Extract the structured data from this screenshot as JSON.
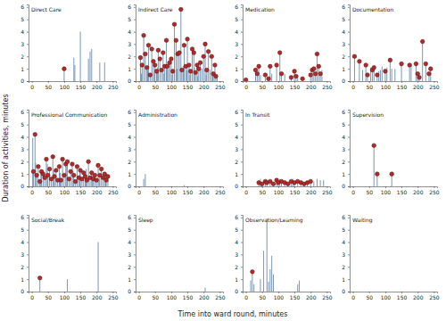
{
  "chart_data": [
    {
      "type": "spike",
      "title": "Direct Care",
      "xlim": [
        -10,
        260
      ],
      "xticks": [
        0,
        50,
        100,
        150,
        200,
        250
      ],
      "ylim": [
        0,
        6.2
      ],
      "yticks": [
        0,
        1,
        2,
        3,
        4,
        5,
        6
      ],
      "series": [
        {
          "type": "spike",
          "color": "#6a8bb0",
          "x": [
            130,
            133,
            150,
            175,
            180,
            185,
            210,
            225
          ],
          "values": [
            1.9,
            1.3,
            4.0,
            1.8,
            2.4,
            2.6,
            1.5,
            1.5
          ]
        },
        {
          "type": "spike",
          "marker": "circle",
          "color": "#b22a2a",
          "x": [
            100
          ],
          "values": [
            1.0
          ]
        }
      ]
    },
    {
      "type": "spike",
      "title": "Indirect Care",
      "xlim": [
        -10,
        260
      ],
      "xticks": [
        0,
        50,
        100,
        150,
        200,
        250
      ],
      "ylim": [
        0,
        6.2
      ],
      "yticks": [
        0,
        1,
        2,
        3,
        4,
        5,
        6
      ],
      "series": [
        {
          "type": "spike",
          "color": "#6a8bb0",
          "x": [
            8,
            27,
            48,
            58,
            78,
            92,
            103,
            118,
            137,
            148,
            158,
            172,
            182,
            195,
            208,
            220,
            228,
            242
          ],
          "values": [
            0.6,
            0.9,
            0.7,
            1.1,
            0.6,
            1.0,
            0.5,
            1.0,
            1.2,
            0.9,
            0.5,
            1.1,
            0.4,
            1.0,
            0.5,
            0.9,
            0.7,
            0.5
          ]
        },
        {
          "type": "spike",
          "marker": "circle",
          "color": "#b22a2a",
          "x": [
            5,
            10,
            15,
            20,
            25,
            30,
            35,
            40,
            45,
            50,
            55,
            60,
            65,
            70,
            75,
            80,
            85,
            88,
            95,
            100,
            105,
            110,
            115,
            120,
            125,
            130,
            133,
            140,
            145,
            150,
            155,
            160,
            165,
            170,
            175,
            180,
            185,
            190,
            200,
            205,
            210,
            215,
            225,
            230,
            235,
            238
          ],
          "values": [
            1.9,
            1.3,
            3.7,
            2.2,
            1.1,
            2.9,
            0.5,
            2.6,
            1.6,
            1.3,
            0.8,
            2.5,
            1.8,
            0.9,
            2.3,
            1.2,
            3.3,
            1.2,
            1.5,
            1.8,
            0.8,
            4.6,
            3.3,
            2.2,
            2.3,
            5.8,
            0.9,
            2.9,
            1.2,
            3.4,
            1.3,
            0.8,
            2.6,
            2.3,
            0.7,
            1.3,
            1.0,
            1.5,
            2.0,
            3.0,
            0.9,
            2.4,
            2.0,
            0.6,
            1.3,
            0.4
          ]
        }
      ]
    },
    {
      "type": "spike",
      "title": "Medication",
      "xlim": [
        -10,
        260
      ],
      "xticks": [
        0,
        50,
        100,
        150,
        200,
        250
      ],
      "ylim": [
        0,
        6.2
      ],
      "yticks": [
        0,
        1,
        2,
        3,
        4,
        5,
        6
      ],
      "series": [
        {
          "type": "spike",
          "color": "#6a8bb0",
          "x": [
            45,
            80,
            120,
            160,
            235
          ],
          "values": [
            0.5,
            0.6,
            0.6,
            0.5,
            0.9
          ]
        },
        {
          "type": "spike",
          "marker": "circle",
          "color": "#b22a2a",
          "x": [
            0,
            30,
            35,
            40,
            60,
            70,
            75,
            95,
            105,
            110,
            140,
            150,
            155,
            175,
            200,
            205,
            210,
            215,
            220,
            225,
            230
          ],
          "values": [
            0.1,
            0.9,
            0.6,
            1.2,
            0.5,
            0.2,
            1.2,
            1.3,
            2.3,
            0.6,
            0.3,
            0.8,
            0.4,
            0.2,
            0.5,
            0.9,
            1.0,
            0.6,
            2.2,
            1.2,
            0.6
          ]
        }
      ]
    },
    {
      "type": "spike",
      "title": "Documentation",
      "xlim": [
        -10,
        260
      ],
      "xticks": [
        0,
        50,
        100,
        150,
        200,
        250
      ],
      "ylim": [
        0,
        6.2
      ],
      "yticks": [
        0,
        1,
        2,
        3,
        4,
        5,
        6
      ],
      "series": [
        {
          "type": "spike",
          "color": "#6a8bb0",
          "x": [
            30,
            55,
            80,
            85,
            90,
            105,
            120,
            130,
            180
          ],
          "values": [
            0.9,
            1.1,
            0.8,
            0.9,
            1.2,
            1.1,
            1.0,
            1.0,
            1.4
          ]
        },
        {
          "type": "spike",
          "marker": "circle",
          "color": "#b22a2a",
          "x": [
            5,
            20,
            40,
            45,
            60,
            65,
            75,
            100,
            115,
            150,
            175,
            195,
            200,
            205,
            215,
            225,
            235,
            240
          ],
          "values": [
            2.0,
            1.6,
            1.3,
            0.5,
            0.9,
            1.1,
            0.5,
            0.8,
            1.7,
            1.4,
            1.3,
            1.4,
            0.6,
            0.3,
            3.2,
            1.4,
            0.6,
            1.0
          ]
        }
      ]
    },
    {
      "type": "spike",
      "title": "Professional Communication",
      "xlim": [
        -10,
        260
      ],
      "xticks": [
        0,
        50,
        100,
        150,
        200,
        250
      ],
      "ylim": [
        0,
        6.2
      ],
      "yticks": [
        0,
        1,
        2,
        3,
        4,
        5,
        6
      ],
      "series": [
        {
          "type": "spike",
          "color": "#6a8bb0",
          "x": [
            3,
            12,
            28,
            48,
            68,
            88,
            108,
            128,
            148,
            168,
            188,
            208,
            228
          ],
          "values": [
            3.9,
            1.9,
            1.2,
            1.8,
            1.3,
            1.1,
            1.6,
            1.2,
            1.4,
            1.4,
            0.9,
            0.6,
            0.9
          ]
        },
        {
          "type": "spike",
          "marker": "circle",
          "color": "#b22a2a",
          "x": [
            5,
            10,
            15,
            20,
            25,
            30,
            35,
            40,
            45,
            50,
            55,
            60,
            65,
            70,
            75,
            80,
            85,
            90,
            95,
            100,
            105,
            110,
            115,
            120,
            125,
            130,
            135,
            140,
            145,
            150,
            155,
            160,
            165,
            170,
            175,
            180,
            185,
            190,
            195,
            200,
            205,
            210,
            215,
            220,
            225,
            230,
            235
          ],
          "values": [
            1.2,
            4.2,
            0.9,
            1.6,
            0.4,
            1.2,
            1.0,
            0.7,
            2.2,
            0.9,
            1.4,
            0.6,
            2.4,
            0.8,
            1.3,
            0.5,
            1.6,
            0.5,
            2.2,
            0.9,
            1.8,
            2.0,
            0.6,
            1.2,
            1.8,
            0.9,
            0.4,
            1.6,
            0.7,
            1.3,
            0.6,
            1.1,
            0.8,
            0.5,
            2.0,
            0.7,
            1.1,
            0.6,
            0.9,
            0.5,
            1.7,
            0.9,
            1.4,
            0.7,
            1.0,
            0.5,
            0.8
          ]
        }
      ]
    },
    {
      "type": "spike",
      "title": "Administration",
      "xlim": [
        -10,
        260
      ],
      "xticks": [
        0,
        50,
        100,
        150,
        200,
        250
      ],
      "ylim": [
        0,
        6.2
      ],
      "yticks": [
        0,
        1,
        2,
        3,
        4,
        5,
        6
      ],
      "series": [
        {
          "type": "spike",
          "color": "#6a8bb0",
          "x": [
            15,
            20,
            140
          ],
          "values": [
            0.6,
            1.0,
            0.1
          ]
        }
      ]
    },
    {
      "type": "spike",
      "title": "In Transit",
      "xlim": [
        -10,
        260
      ],
      "xticks": [
        0,
        50,
        100,
        150,
        200,
        250
      ],
      "ylim": [
        0,
        6.2
      ],
      "yticks": [
        0,
        1,
        2,
        3,
        4,
        5,
        6
      ],
      "series": [
        {
          "type": "spike",
          "color": "#6a8bb0",
          "x": [
            45,
            105,
            145,
            210,
            220,
            230,
            240
          ],
          "values": [
            0.6,
            0.6,
            0.6,
            0.4,
            0.6,
            0.5,
            0.5
          ]
        },
        {
          "type": "spike",
          "marker": "circle",
          "color": "#b22a2a",
          "x": [
            40,
            50,
            60,
            65,
            75,
            85,
            95,
            100,
            110,
            120,
            130,
            140,
            150,
            160,
            170,
            180,
            190,
            200
          ],
          "values": [
            0.3,
            0.2,
            0.4,
            0.3,
            0.4,
            0.2,
            0.5,
            0.3,
            0.4,
            0.3,
            0.2,
            0.4,
            0.3,
            0.4,
            0.3,
            0.2,
            0.3,
            0.4
          ]
        }
      ]
    },
    {
      "type": "spike",
      "title": "Supervision",
      "xlim": [
        -10,
        260
      ],
      "xticks": [
        0,
        50,
        100,
        150,
        200,
        250
      ],
      "ylim": [
        0,
        6.2
      ],
      "yticks": [
        0,
        1,
        2,
        3,
        4,
        5,
        6
      ],
      "series": [
        {
          "type": "spike",
          "marker": "circle",
          "color": "#b22a2a",
          "x": [
            65,
            75,
            120
          ],
          "values": [
            3.3,
            1.0,
            1.0
          ]
        }
      ]
    },
    {
      "type": "spike",
      "title": "Social/Break",
      "xlim": [
        -10,
        260
      ],
      "xticks": [
        0,
        50,
        100,
        150,
        200,
        250
      ],
      "ylim": [
        0,
        6.2
      ],
      "yticks": [
        0,
        1,
        2,
        3,
        4,
        5,
        6
      ],
      "series": [
        {
          "type": "spike",
          "color": "#6a8bb0",
          "x": [
            110,
            205
          ],
          "values": [
            1.0,
            4.0
          ]
        },
        {
          "type": "spike",
          "marker": "circle",
          "color": "#b22a2a",
          "x": [
            25
          ],
          "values": [
            1.1
          ]
        }
      ]
    },
    {
      "type": "spike",
      "title": "Sleep",
      "xlim": [
        -10,
        260
      ],
      "xticks": [
        0,
        50,
        100,
        150,
        200,
        250
      ],
      "ylim": [
        0,
        6.2
      ],
      "yticks": [
        0,
        1,
        2,
        3,
        4,
        5,
        6
      ],
      "series": [
        {
          "type": "spike",
          "color": "#6a8bb0",
          "x": [
            205
          ],
          "values": [
            0.3
          ]
        }
      ]
    },
    {
      "type": "spike",
      "title": "Observation/Learning",
      "xlim": [
        -10,
        260
      ],
      "xticks": [
        0,
        50,
        100,
        150,
        200,
        250
      ],
      "ylim": [
        0,
        6.2
      ],
      "yticks": [
        0,
        1,
        2,
        3,
        4,
        5,
        6
      ],
      "series": [
        {
          "type": "spike",
          "color": "#6a8bb0",
          "x": [
            15,
            25,
            45,
            55,
            65,
            70,
            75,
            80,
            85,
            160,
            165
          ],
          "values": [
            0.9,
            0.6,
            1.0,
            3.3,
            5.9,
            0.8,
            1.8,
            2.9,
            1.4,
            0.6,
            0.9
          ]
        },
        {
          "type": "spike",
          "marker": "circle",
          "color": "#b22a2a",
          "x": [
            20
          ],
          "values": [
            1.6
          ]
        }
      ]
    },
    {
      "type": "spike",
      "title": "Waiting",
      "xlim": [
        -10,
        260
      ],
      "xticks": [
        0,
        50,
        100,
        150,
        200,
        250
      ],
      "ylim": [
        0,
        6.2
      ],
      "yticks": [
        0,
        1,
        2,
        3,
        4,
        5,
        6
      ],
      "series": []
    }
  ],
  "x_label": "Time into ward round, minutes",
  "y_label": "Duration of activities, minutes"
}
